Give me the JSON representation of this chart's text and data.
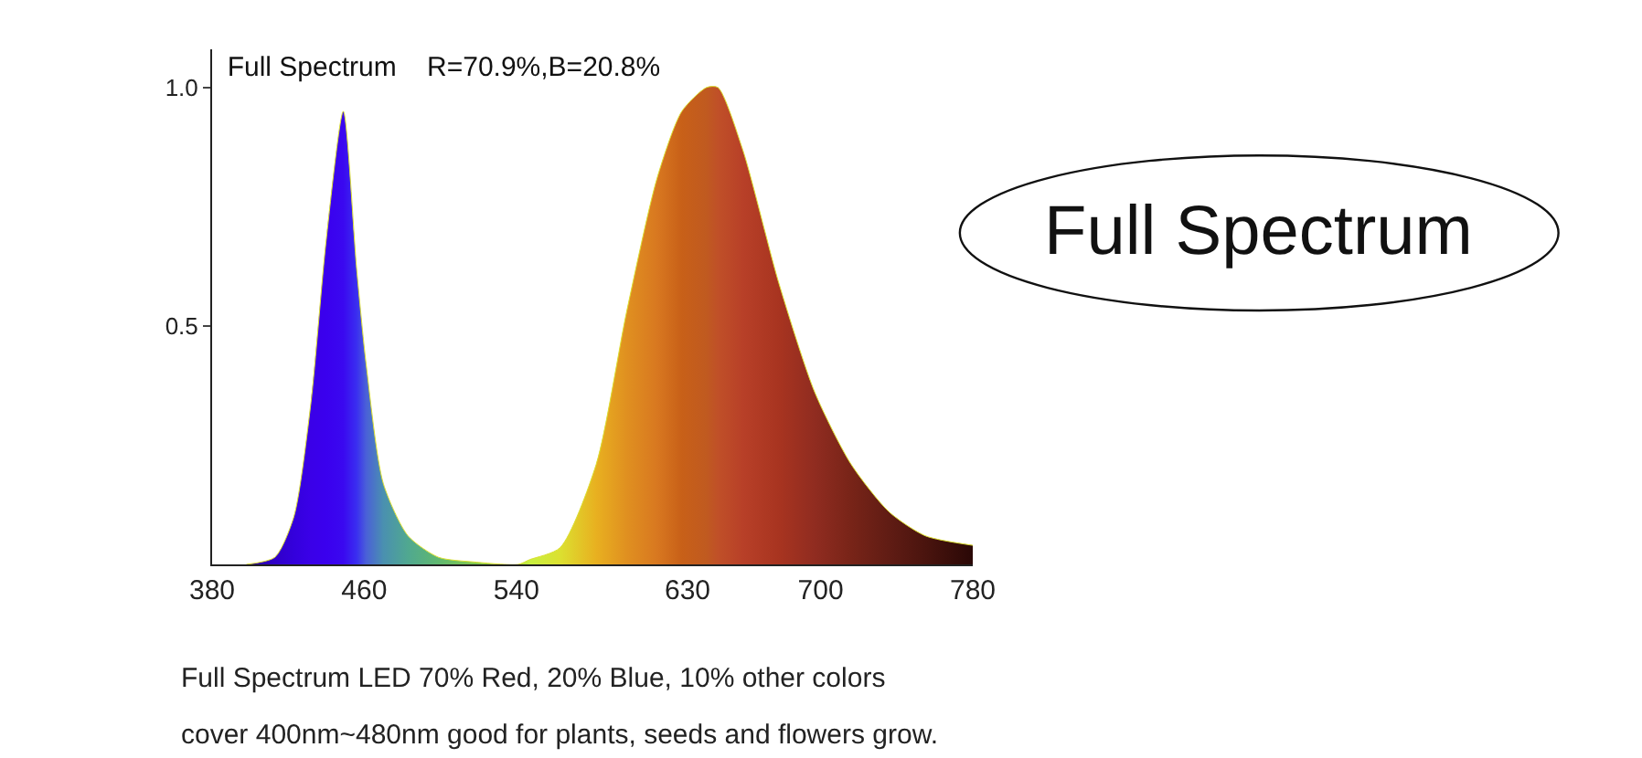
{
  "chart_data": {
    "type": "area",
    "title": "Full Spectrum    R=70.9%,B=20.8%",
    "x": [
      398,
      413,
      423,
      432,
      440,
      449,
      456,
      461,
      470,
      483,
      499,
      518,
      541,
      547,
      563,
      582,
      598,
      614,
      627,
      640,
      646,
      659,
      678,
      697,
      716,
      736,
      755,
      780
    ],
    "values": [
      0,
      0.015,
      0.1,
      0.34,
      0.68,
      0.95,
      0.62,
      0.42,
      0.17,
      0.06,
      0.015,
      0.005,
      0,
      0.01,
      0.035,
      0.21,
      0.53,
      0.81,
      0.95,
      1.0,
      1.0,
      0.87,
      0.59,
      0.36,
      0.21,
      0.11,
      0.06,
      0.04
    ],
    "colors": [
      "#2a00a0",
      "#3000c8",
      "#3400dc",
      "#3a00e8",
      "#3a00ee",
      "#3a08f0",
      "#3a2ef0",
      "#4a60d8",
      "#4a90b0",
      "#50a890",
      "#60b870",
      "#80c850",
      "#b0e040",
      "#c8f040",
      "#dce030",
      "#e8b020",
      "#e09020",
      "#d87820",
      "#c86018",
      "#c05a20",
      "#c05028",
      "#b84028",
      "#a83420",
      "#902c20",
      "#782418",
      "#601c14",
      "#4a140e",
      "#2a0806"
    ],
    "xlim": [
      380,
      780
    ],
    "ylim": [
      0,
      1.08
    ],
    "xticks": [
      380,
      460,
      540,
      630,
      700,
      780
    ],
    "yticks": [
      {
        "value": 0.5,
        "label": "0.5"
      },
      {
        "value": 1.0,
        "label": "1.0"
      }
    ],
    "annotations": [
      "Full Spectrum",
      "Full Spectrum LED 70% Red, 20% Blue, 10% other colors",
      "cover 400nm~480nm good for plants, seeds and flowers grow."
    ]
  }
}
